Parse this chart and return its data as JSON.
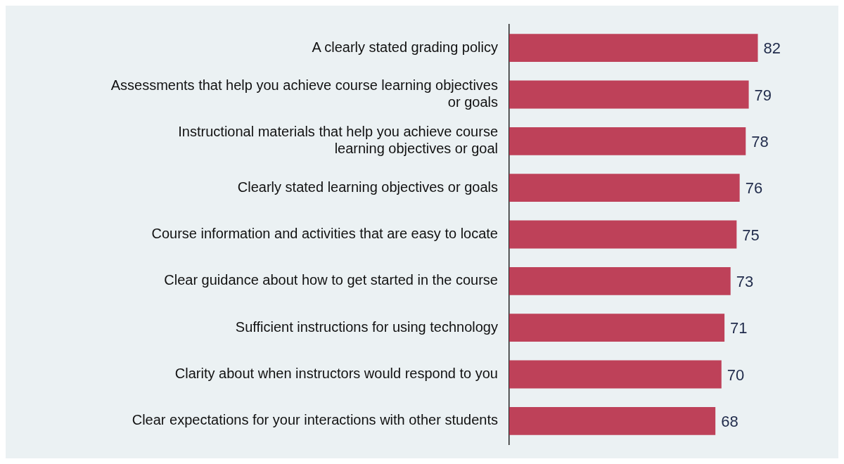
{
  "chart_data": {
    "type": "bar",
    "orientation": "horizontal",
    "categories": [
      "A clearly stated grading policy",
      "Assessments that help you achieve course learning objectives or goals",
      "Instructional materials that help you achieve course learning objectives or goal",
      "Clearly stated learning objectives or goals",
      "Course information and activities that are easy to locate",
      "Clear guidance about how to get started in the course",
      "Sufficient instructions for using technology",
      "Clarity about when instructors would respond to you",
      "Clear expectations for your interactions with other students"
    ],
    "values": [
      82,
      79,
      78,
      76,
      75,
      73,
      71,
      70,
      68
    ],
    "color": "#be4159",
    "data_labels": true,
    "tick_labels": "y",
    "grid": false,
    "legend": false
  }
}
